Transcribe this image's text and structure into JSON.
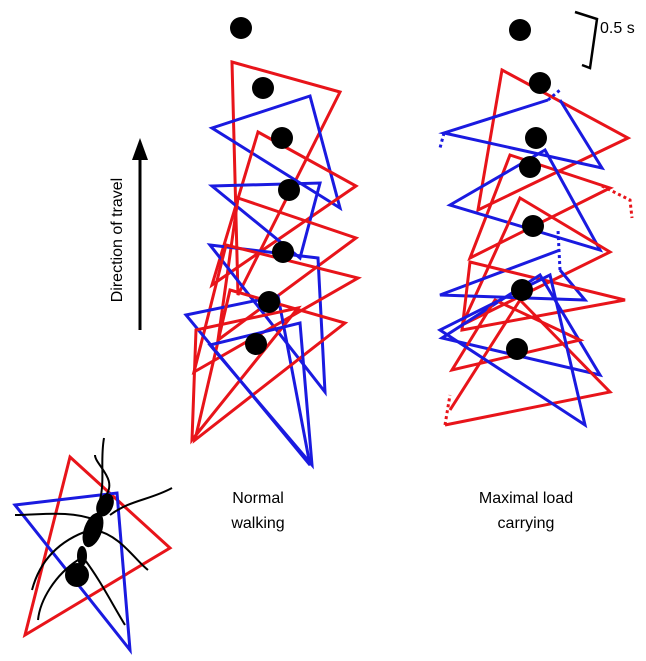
{
  "labels": {
    "direction": "Direction of travel",
    "scale": "0.5 s",
    "normal": [
      "Normal",
      "walking"
    ],
    "loaded": [
      "Maximal load",
      "carrying"
    ]
  }
}
